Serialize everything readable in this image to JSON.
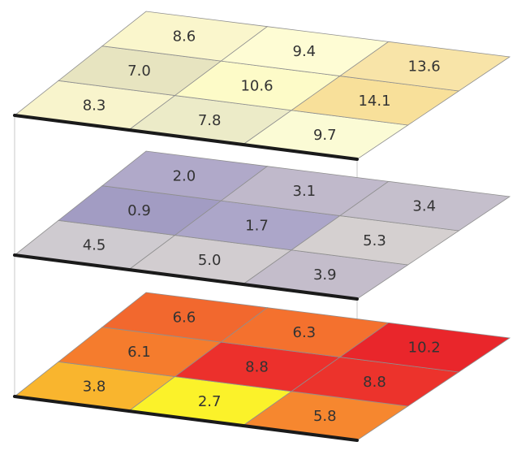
{
  "layers": [
    {
      "cells": [
        {
          "v": "8.3",
          "c": "#f8f4cc"
        },
        {
          "v": "7.8",
          "c": "#ecebc8"
        },
        {
          "v": "9.7",
          "c": "#fbfbd5"
        },
        {
          "v": "7.0",
          "c": "#e7e4c0"
        },
        {
          "v": "10.6",
          "c": "#fdfbc8"
        },
        {
          "v": "14.1",
          "c": "#f8e09a"
        },
        {
          "v": "8.6",
          "c": "#faf6cc"
        },
        {
          "v": "9.4",
          "c": "#fefcd4"
        },
        {
          "v": "13.6",
          "c": "#f8e4a8"
        }
      ]
    },
    {
      "cells": [
        {
          "v": "4.5",
          "c": "#cfcbd0"
        },
        {
          "v": "5.0",
          "c": "#d2cdd0"
        },
        {
          "v": "3.9",
          "c": "#c4bdcb"
        },
        {
          "v": "0.9",
          "c": "#a29cc3"
        },
        {
          "v": "1.7",
          "c": "#aca6c9"
        },
        {
          "v": "5.3",
          "c": "#d5d0d0"
        },
        {
          "v": "2.0",
          "c": "#b0a9c9"
        },
        {
          "v": "3.1",
          "c": "#c0b9cb"
        },
        {
          "v": "3.4",
          "c": "#c5bfcc"
        }
      ]
    },
    {
      "cells": [
        {
          "v": "3.8",
          "c": "#f9b52e"
        },
        {
          "v": "2.7",
          "c": "#fbf22a"
        },
        {
          "v": "5.8",
          "c": "#f6872f"
        },
        {
          "v": "6.1",
          "c": "#f57c2d"
        },
        {
          "v": "8.8",
          "c": "#ec302c"
        },
        {
          "v": "8.8",
          "c": "#ec332c"
        },
        {
          "v": "6.6",
          "c": "#f2682e"
        },
        {
          "v": "6.3",
          "c": "#f4712e"
        },
        {
          "v": "10.2",
          "c": "#e9262b"
        }
      ]
    }
  ]
}
